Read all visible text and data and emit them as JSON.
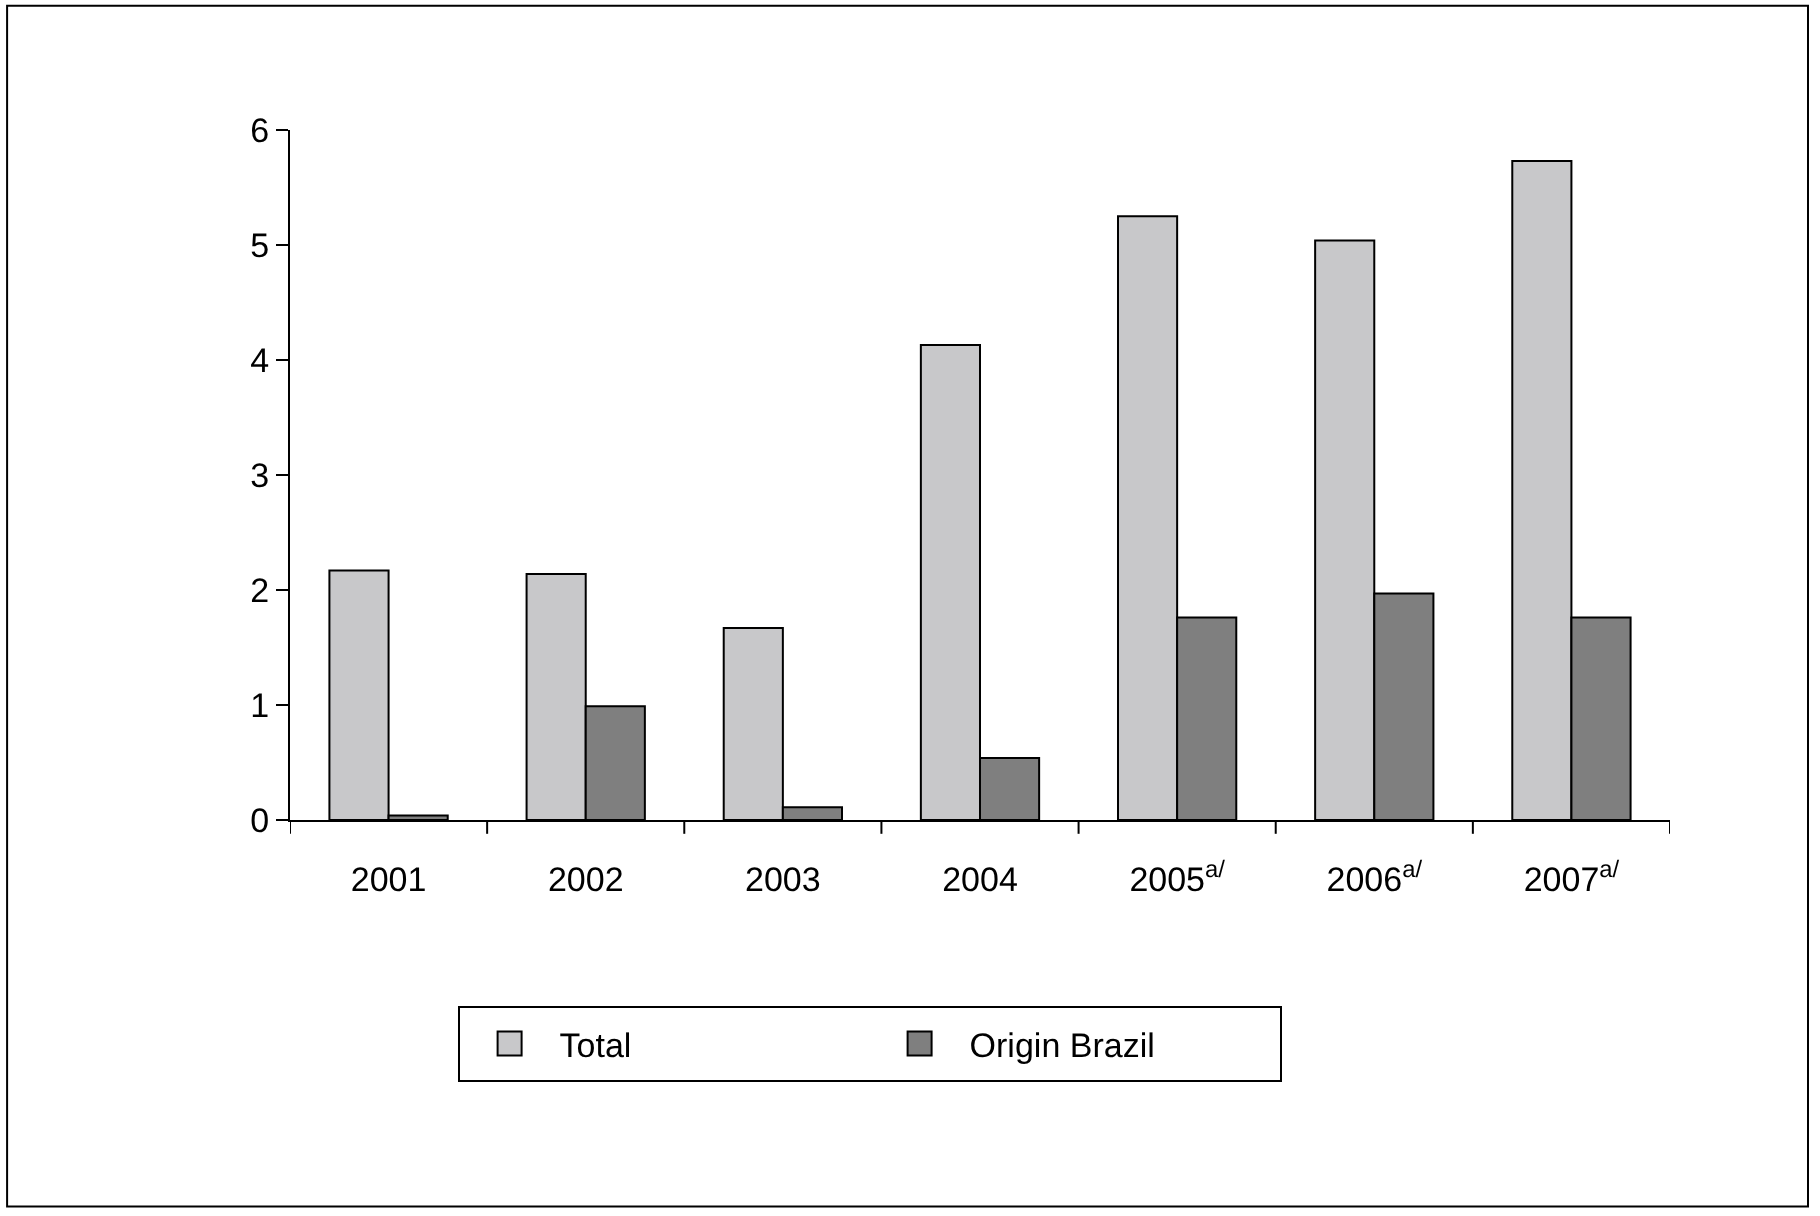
{
  "chart_data": {
    "type": "bar",
    "categories": [
      "2001",
      "2002",
      "2003",
      "2004",
      "2005$^{a/}$",
      "2006$^{a/}$",
      "2007$^{a/}$"
    ],
    "series": [
      {
        "name": "Total",
        "color": "#c8c8ca",
        "values": [
          2.17,
          2.14,
          1.67,
          4.13,
          5.25,
          5.04,
          5.73
        ]
      },
      {
        "name": "Origin Brazil",
        "color": "#7f7f7f",
        "values": [
          0.04,
          0.99,
          0.11,
          0.54,
          1.76,
          1.97,
          1.76
        ]
      }
    ],
    "ylim": [
      0,
      6
    ],
    "yticks": [
      0,
      1,
      2,
      3,
      4,
      5,
      6
    ],
    "legend": "bottom"
  }
}
